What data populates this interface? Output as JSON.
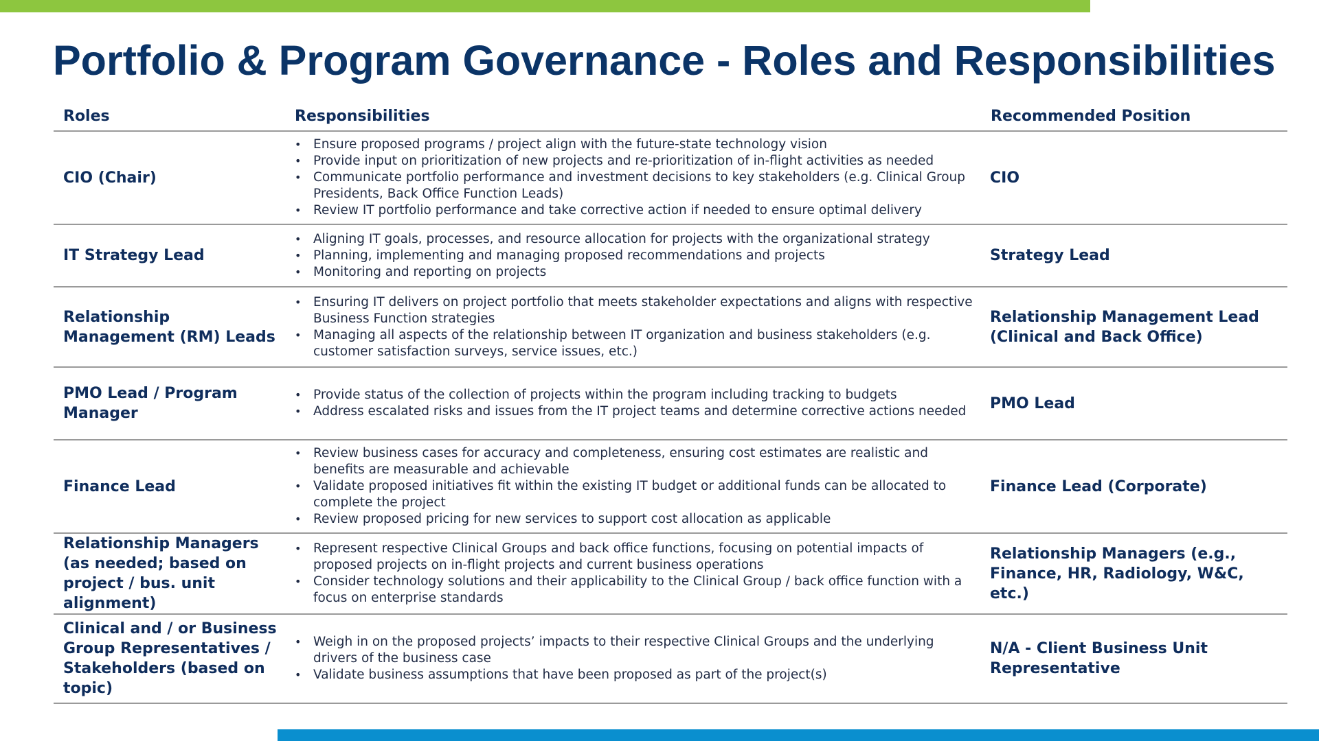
{
  "slide": {
    "title": "Portfolio & Program Governance - Roles and Responsibilities"
  },
  "colors": {
    "top_bar": "#8dc63f",
    "bottom_bar": "#0a8fcf",
    "title_text": "#0b3467",
    "header_text": "#0f2d5c",
    "rule_lines": "#9a9a9a"
  },
  "table": {
    "headers": {
      "roles": "Roles",
      "responsibilities": "Responsibilities",
      "recommended_position": "Recommended Position"
    },
    "rows": [
      {
        "role": "CIO (Chair)",
        "responsibilities": [
          "Ensure proposed programs / project align with the future-state technology vision",
          "Provide input on prioritization of new projects and re-prioritization of in-flight activities as needed",
          "Communicate portfolio performance and investment decisions to key stakeholders (e.g. Clinical Group Presidents, Back Office Function Leads)",
          "Review IT portfolio performance and take corrective action if needed to ensure optimal delivery"
        ],
        "position": "CIO"
      },
      {
        "role": "IT Strategy Lead",
        "responsibilities": [
          "Aligning IT goals, processes, and resource allocation for projects with the organizational strategy",
          "Planning, implementing and managing proposed recommendations and projects",
          "Monitoring and reporting on projects"
        ],
        "position": "Strategy Lead"
      },
      {
        "role": "Relationship Management (RM) Leads",
        "responsibilities": [
          "Ensuring IT delivers on project portfolio that meets stakeholder expectations and aligns with respective Business Function strategies",
          "Managing all aspects of the relationship between IT organization and business stakeholders (e.g. customer satisfaction surveys, service issues, etc.)"
        ],
        "position": "Relationship Management Lead (Clinical and Back Office)"
      },
      {
        "role": "PMO Lead / Program Manager",
        "responsibilities": [
          "Provide status of the collection of projects within the program including tracking to budgets",
          "Address escalated risks and issues from the IT project teams and determine corrective actions needed"
        ],
        "position": "PMO Lead"
      },
      {
        "role": "Finance Lead",
        "responsibilities": [
          "Review business cases for accuracy and completeness, ensuring cost estimates are realistic and benefits are measurable and achievable",
          "Validate proposed initiatives fit within the existing IT budget or additional funds can be allocated to complete the project",
          "Review proposed pricing for new services to support cost allocation as applicable"
        ],
        "position": "Finance Lead (Corporate)"
      },
      {
        "role": "Relationship Managers (as needed; based on project / bus. unit alignment)",
        "responsibilities": [
          "Represent respective Clinical Groups and back office functions, focusing on potential impacts of proposed projects on in-flight projects and current business operations",
          "Consider technology solutions and their applicability to the Clinical Group / back office function with a focus on enterprise standards"
        ],
        "position": "Relationship Managers (e.g., Finance, HR, Radiology, W&C, etc.)"
      },
      {
        "role": "Clinical and / or Business Group Representatives / Stakeholders (based on topic)",
        "responsibilities": [
          "Weigh in on the proposed projects’ impacts to their respective Clinical Groups and the underlying drivers of the business case",
          "Validate business assumptions that have been proposed as part of the project(s)"
        ],
        "position": "N/A - Client Business Unit Representative"
      }
    ]
  }
}
